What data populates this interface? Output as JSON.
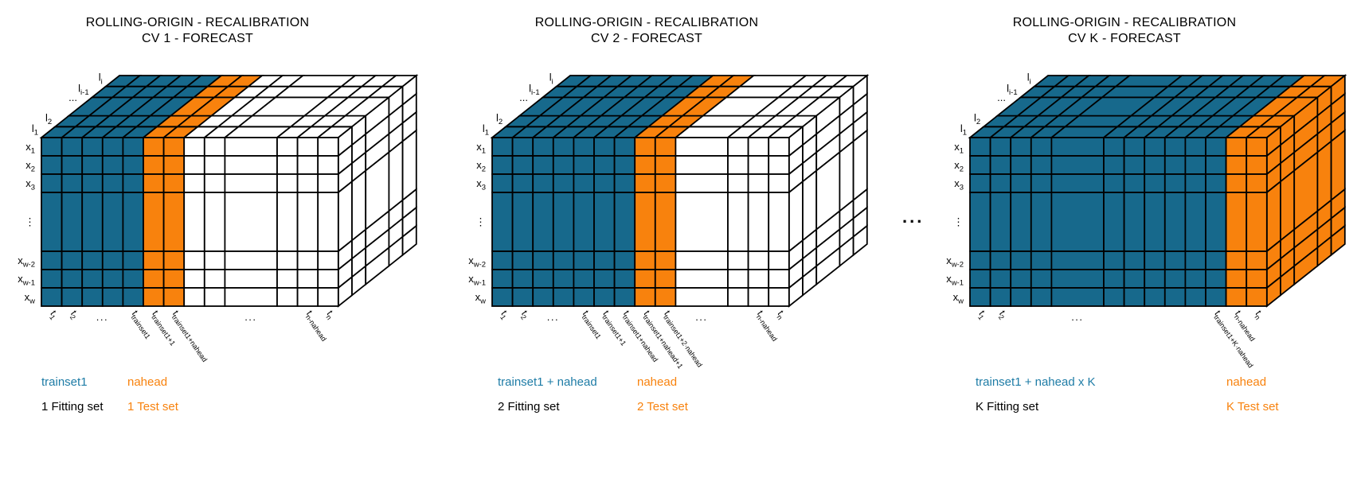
{
  "colors": {
    "train": "#17698C",
    "test": "#F8820D",
    "empty": "#FFFFFF",
    "line": "#000000",
    "legend_train": "#1E7CA6",
    "legend_test": "#F8820D",
    "legend_neutral": "#000000"
  },
  "separator": "...",
  "panels": [
    {
      "title_line1": "ROLLING-ORIGIN - RECALIBRATION",
      "title_line2": "CV 1 - FORECAST",
      "legend": {
        "train": "trainset1",
        "test": "nahead",
        "fitting": "1 Fitting set",
        "testset": "1 Test set"
      },
      "cube": {
        "row_labels": [
          {
            "m": "x",
            "s": "1"
          },
          {
            "m": "x",
            "s": "2"
          },
          {
            "m": "x",
            "s": "3"
          },
          {
            "dots": "⋮"
          },
          {
            "m": "x",
            "s": "w-2"
          },
          {
            "m": "x",
            "s": "w-1"
          },
          {
            "m": "x",
            "s": "w"
          }
        ],
        "depth_labels": [
          {
            "m": "l",
            "s": "1"
          },
          {
            "m": "l",
            "s": "2"
          },
          {
            "dots": "..."
          },
          {
            "m": "l",
            "s": "i-1"
          },
          {
            "m": "l",
            "s": "i"
          }
        ],
        "columns": [
          "train",
          "train",
          "train",
          "train",
          "train",
          "test",
          "test",
          "empty",
          "empty",
          "empty",
          "empty",
          "empty",
          "empty"
        ],
        "wide_col": 9,
        "ticks": [
          {
            "c": 0,
            "m": "t",
            "s": "1"
          },
          {
            "c": 1,
            "m": "t",
            "s": "2"
          },
          {
            "c": 2.5,
            "dots": "..."
          },
          {
            "c": 4,
            "m": "t",
            "s": "trainset1"
          },
          {
            "c": 5,
            "m": "t",
            "s": "trainset1+1"
          },
          {
            "c": 6,
            "m": "t",
            "s": "trainset1+nahead"
          },
          {
            "c": 9,
            "dots": "..."
          },
          {
            "c": 11,
            "m": "t",
            "s": "n-nahead"
          },
          {
            "c": 12,
            "m": "t",
            "s": "n"
          }
        ]
      }
    },
    {
      "title_line1": "ROLLING-ORIGIN - RECALIBRATION",
      "title_line2": "CV 2 - FORECAST",
      "legend": {
        "train": "trainset1 + nahead",
        "test": "nahead",
        "fitting": "2 Fitting set",
        "testset": "2 Test set"
      },
      "cube": {
        "row_labels": [
          {
            "m": "x",
            "s": "1"
          },
          {
            "m": "x",
            "s": "2"
          },
          {
            "m": "x",
            "s": "3"
          },
          {
            "dots": "⋮"
          },
          {
            "m": "x",
            "s": "w-2"
          },
          {
            "m": "x",
            "s": "w-1"
          },
          {
            "m": "x",
            "s": "w"
          }
        ],
        "depth_labels": [
          {
            "m": "l",
            "s": "1"
          },
          {
            "m": "l",
            "s": "2"
          },
          {
            "dots": "..."
          },
          {
            "m": "l",
            "s": "i-1"
          },
          {
            "m": "l",
            "s": "i"
          }
        ],
        "columns": [
          "train",
          "train",
          "train",
          "train",
          "train",
          "train",
          "train",
          "test",
          "test",
          "empty",
          "empty",
          "empty",
          "empty"
        ],
        "wide_col": 9,
        "ticks": [
          {
            "c": 0,
            "m": "t",
            "s": "1"
          },
          {
            "c": 1,
            "m": "t",
            "s": "2"
          },
          {
            "c": 2.5,
            "dots": "..."
          },
          {
            "c": 4,
            "m": "t",
            "s": "trainset1"
          },
          {
            "c": 5,
            "m": "t",
            "s": "trainset1+1"
          },
          {
            "c": 6,
            "m": "t",
            "s": "trainset1+nahead"
          },
          {
            "c": 7,
            "m": "t",
            "s": "trainset1+nahead+1"
          },
          {
            "c": 8,
            "m": "t",
            "s": "trainset1+2·nahead"
          },
          {
            "c": 9,
            "dots": "..."
          },
          {
            "c": 11,
            "m": "t",
            "s": "n-nahead"
          },
          {
            "c": 12,
            "m": "t",
            "s": "n"
          }
        ]
      }
    },
    {
      "title_line1": "ROLLING-ORIGIN - RECALIBRATION",
      "title_line2": "CV K - FORECAST",
      "legend": {
        "train": "trainset1 + nahead x K",
        "test": "nahead",
        "fitting": "K Fitting set",
        "testset": "K Test set"
      },
      "cube": {
        "row_labels": [
          {
            "m": "x",
            "s": "1"
          },
          {
            "m": "x",
            "s": "2"
          },
          {
            "m": "x",
            "s": "3"
          },
          {
            "dots": "⋮"
          },
          {
            "m": "x",
            "s": "w-2"
          },
          {
            "m": "x",
            "s": "w-1"
          },
          {
            "m": "x",
            "s": "w"
          }
        ],
        "depth_labels": [
          {
            "m": "l",
            "s": "1"
          },
          {
            "m": "l",
            "s": "2"
          },
          {
            "dots": "..."
          },
          {
            "m": "l",
            "s": "i-1"
          },
          {
            "m": "l",
            "s": "i"
          }
        ],
        "columns": [
          "train",
          "train",
          "train",
          "train",
          "train",
          "train",
          "train",
          "train",
          "train",
          "train",
          "train",
          "test",
          "test"
        ],
        "wide_col": 4,
        "ticks": [
          {
            "c": 0,
            "m": "t",
            "s": "1"
          },
          {
            "c": 1,
            "m": "t",
            "s": "2"
          },
          {
            "c": 4,
            "dots": "..."
          },
          {
            "c": 10,
            "m": "t",
            "s": "trainset1+K·nahead"
          },
          {
            "c": 11,
            "m": "t",
            "s": "n-nahead"
          },
          {
            "c": 12,
            "m": "t",
            "s": "n"
          }
        ]
      }
    }
  ]
}
